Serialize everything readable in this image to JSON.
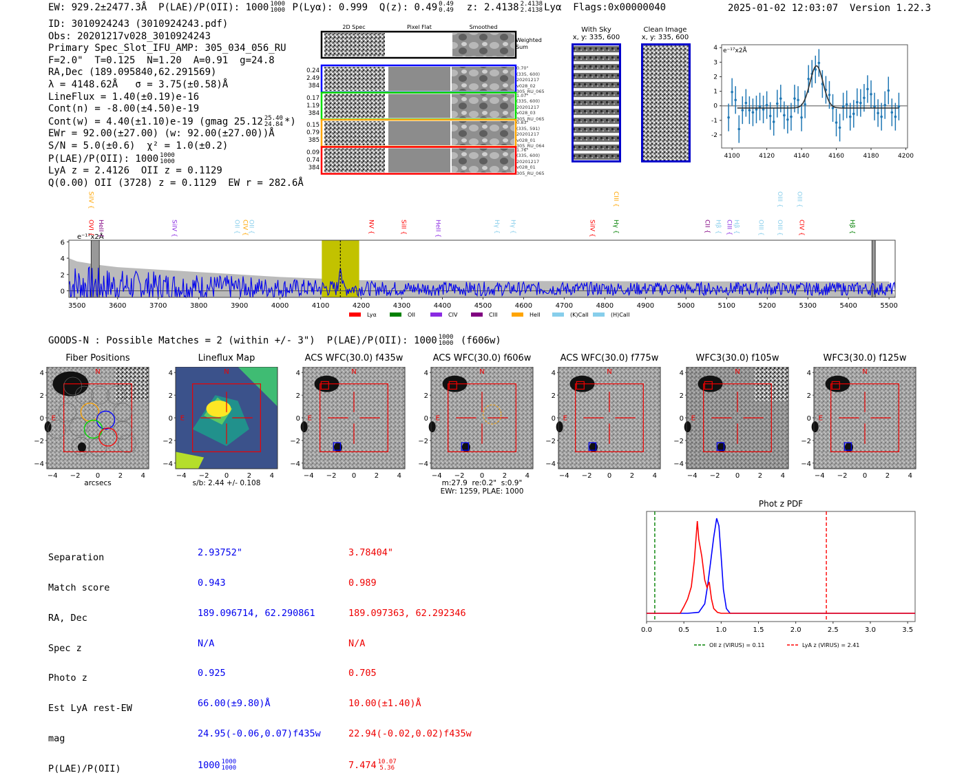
{
  "header": {
    "ew": "EW: 929.2±2477.3Å",
    "plae_label": "P(LAE)/P(OII): 1000",
    "plae_hi": "1000",
    "plae_lo": "1000",
    "plya": "P(Lyα): 0.999",
    "qz_label": "Q(z): 0.49",
    "qz_hi": "0.49",
    "qz_lo": "0.49",
    "z_label": "z: 2.4138",
    "z_hi": "2.4138",
    "z_lo": "2.4138",
    "line": "Lyα",
    "flags": "Flags:0x00000040",
    "timestamp": "2025-01-02 12:03:07",
    "version": "Version 1.22.3"
  },
  "info": {
    "id": "ID: 3010924243 (3010924243.pdf)",
    "obs": "Obs: 20201217v028_3010924243",
    "primary": "Primary Spec_Slot_IFU_AMP: 305_034_056_RU",
    "params": "F=2.0\"  T=0.125  N=1.20  A=0.91  g=24.8",
    "radec": "RA,Dec (189.095840,62.291569)",
    "lambda": "λ = 4148.62Å   σ = 3.75(±0.58)Å",
    "lineflux": "LineFlux = 1.40(±0.19)e-16",
    "cont_n": "Cont(n) = -8.00(±4.50)e-19",
    "cont_w": "Cont(w) = 4.40(±1.10)e-19 (gmag 25.12",
    "gmag_hi": "25.40",
    "gmag_lo": "24.84",
    "cont_w_end": "*)",
    "ewr": "EWr = 92.00(±27.00) (w: 92.00(±27.00))Å",
    "sn": "S/N = 5.0(±0.6)  χ² = 1.0(±0.2)",
    "plae": "P(LAE)/P(OII): 1000",
    "plae_hi": "1000",
    "plae_lo": "1000",
    "lya_z": "LyA z = 2.4126  OII z = 0.1129",
    "q_oii": "Q(0.00) OII (3728) z = 0.1129  EW r = 282.6Å"
  },
  "cutouts": {
    "columns": [
      "2D Spec",
      "Pixel Flat",
      "Smoothed"
    ],
    "weighted_sum_label": "Weighted\nSum",
    "rows": [
      {
        "color": "#0000ff",
        "left": [
          "0.24",
          "2.49",
          "384"
        ],
        "right": "0.70\"\n(335, 600)\n20201217\nv028_02\n305_RU_065"
      },
      {
        "color": "#00dd00",
        "left": [
          "0.17",
          "1.19",
          "384"
        ],
        "right": "1.07\"\n(335, 600)\n20201217\nv028_03\n305_RU_065"
      },
      {
        "color": "#ffa500",
        "left": [
          "0.15",
          "0.79",
          "385"
        ],
        "right": "0.83\"\n(335, 591)\n20201217\nv028_01\n305_RU_064"
      },
      {
        "color": "#ff0000",
        "left": [
          "0.09",
          "0.74",
          "384"
        ],
        "right": "1.76\"\n(335, 600)\n20201217\nv028_01\n305_RU_065"
      }
    ]
  },
  "sky_panels": {
    "with_sky_title": "With Sky",
    "with_sky_xy": "x, y: 335, 600",
    "clean_title": "Clean Image",
    "clean_xy": "x, y: 335, 600"
  },
  "chart_data": [
    {
      "type": "scatter",
      "name": "line-fit-zoom",
      "ylabel_annotation": "e⁻¹⁷x2Å",
      "xlim": [
        4094,
        4201
      ],
      "ylim": [
        -2.9,
        4.2
      ],
      "xticks": [
        4100,
        4120,
        4140,
        4160,
        4180,
        4200
      ],
      "yticks": [
        -2,
        -1,
        0,
        1,
        2,
        3,
        4
      ],
      "points_x": [
        4098,
        4100,
        4102,
        4104,
        4106,
        4108,
        4110,
        4112,
        4114,
        4116,
        4118,
        4120,
        4122,
        4124,
        4126,
        4128,
        4130,
        4132,
        4134,
        4136,
        4138,
        4140,
        4142,
        4144,
        4146,
        4148,
        4150,
        4152,
        4154,
        4156,
        4158,
        4160,
        4162,
        4164,
        4166,
        4168,
        4170,
        4172,
        4174,
        4176,
        4178,
        4180,
        4182,
        4184,
        4186,
        4188,
        4190,
        4192,
        4194,
        4196
      ],
      "points_y": [
        -0.8,
        0.95,
        0.4,
        -1.6,
        -0.3,
        0.2,
        -0.3,
        -0.45,
        -0.25,
        -0.05,
        -0.25,
        0.05,
        -0.7,
        -1.1,
        0.15,
        0.5,
        -0.65,
        -0.95,
        -0.75,
        0.5,
        0.4,
        -0.8,
        0.1,
        1.85,
        2.2,
        2.5,
        2.95,
        1.5,
        1.1,
        0.75,
        -0.15,
        -1.15,
        -1.5,
        -0.05,
        0.1,
        -0.75,
        -0.55,
        0.25,
        0.2,
        0.55,
        1.15,
        0.8,
        -0.05,
        -0.5,
        -0.75,
        0.05,
        1.05,
        -0.45,
        -0.75,
        -0.05
      ],
      "error": 0.95,
      "fit": {
        "center": 4148.6,
        "sigma": 3.75,
        "amplitude": 2.9,
        "baseline": -0.15,
        "x_range": [
          4103,
          4196
        ]
      },
      "colors": {
        "points": "#1f77b4",
        "fit": "#333333",
        "zero": "#888888"
      }
    },
    {
      "type": "line",
      "name": "full-spectrum",
      "ylabel_annotation": "e⁻¹⁷x2Å",
      "xlim": [
        3480,
        5515
      ],
      "ylim": [
        -0.8,
        6.2
      ],
      "xticks": [
        3500,
        3600,
        3700,
        3800,
        3900,
        4000,
        4100,
        4200,
        4300,
        4400,
        4500,
        4600,
        4700,
        4800,
        4900,
        5000,
        5100,
        5200,
        5300,
        5400,
        5500
      ],
      "yticks": [
        0,
        2,
        4,
        6
      ],
      "highlight_band": [
        4103,
        4195
      ],
      "highlight_color": "#c2c200",
      "line_marker": 4148.6,
      "masked_bands": [
        [
          3535,
          3555
        ],
        [
          5458,
          5466
        ]
      ],
      "noise_envelope": [
        [
          3480,
          4.0
        ],
        [
          3500,
          3.6
        ],
        [
          3550,
          3.2
        ],
        [
          3600,
          2.9
        ],
        [
          3700,
          2.6
        ],
        [
          3800,
          2.3
        ],
        [
          3900,
          2.0
        ],
        [
          4000,
          1.7
        ],
        [
          4100,
          1.5
        ],
        [
          4200,
          1.3
        ],
        [
          4400,
          1.25
        ],
        [
          4600,
          1.2
        ],
        [
          5000,
          1.15
        ],
        [
          5500,
          1.15
        ]
      ],
      "series_color": "#0000ee",
      "envelope_color": "#bbbbbb",
      "line_labels": [
        {
          "text": "SiIV",
          "x": 3535,
          "tier": 0,
          "color": "#ffa500"
        },
        {
          "text": "OVI",
          "x": 3535,
          "tier": 1,
          "color": "#ff0000"
        },
        {
          "text": "HeII",
          "x": 3560,
          "tier": 1,
          "color": "#800080"
        },
        {
          "text": "SiIV",
          "x": 3740,
          "tier": 1,
          "color": "#8a2be2"
        },
        {
          "text": "OII",
          "x": 3895,
          "tier": 1,
          "color": "#87ceeb"
        },
        {
          "text": "CIV",
          "x": 3915,
          "tier": 1,
          "color": "#ffa500"
        },
        {
          "text": "OII",
          "x": 3930,
          "tier": 1,
          "color": "#87ceeb"
        },
        {
          "text": "NV",
          "x": 4225,
          "tier": 1,
          "color": "#ff0000"
        },
        {
          "text": "SiII",
          "x": 4305,
          "tier": 1,
          "color": "#ff0000"
        },
        {
          "text": "HeII",
          "x": 4390,
          "tier": 1,
          "color": "#8a2be2"
        },
        {
          "text": "Hγ",
          "x": 4535,
          "tier": 1,
          "color": "#87ceeb"
        },
        {
          "text": "Hγ",
          "x": 4575,
          "tier": 1,
          "color": "#87ceeb"
        },
        {
          "text": "SiIV",
          "x": 4770,
          "tier": 1,
          "color": "#ff0000"
        },
        {
          "text": "CIII",
          "x": 4828,
          "tier": 0,
          "color": "#ffa500"
        },
        {
          "text": "Hγ",
          "x": 4828,
          "tier": 1,
          "color": "#008000"
        },
        {
          "text": "CII",
          "x": 5053,
          "tier": 1,
          "color": "#800080"
        },
        {
          "text": "Hβ",
          "x": 5080,
          "tier": 1,
          "color": "#87ceeb"
        },
        {
          "text": "CIII",
          "x": 5107,
          "tier": 1,
          "color": "#8a2be2"
        },
        {
          "text": "Hβ",
          "x": 5125,
          "tier": 1,
          "color": "#87ceeb"
        },
        {
          "text": "OIII",
          "x": 5185,
          "tier": 1,
          "color": "#87ceeb"
        },
        {
          "text": "OIII",
          "x": 5232,
          "tier": 0,
          "color": "#87ceeb"
        },
        {
          "text": "OIII",
          "x": 5232,
          "tier": 1,
          "color": "#87ceeb"
        },
        {
          "text": "OIII",
          "x": 5280,
          "tier": 0,
          "color": "#87ceeb"
        },
        {
          "text": "CIV",
          "x": 5285,
          "tier": 1,
          "color": "#ff0000"
        },
        {
          "text": "Hβ",
          "x": 5410,
          "tier": 1,
          "color": "#008000"
        }
      ],
      "legend": [
        {
          "label": "Lyα",
          "color": "#ff0000"
        },
        {
          "label": "OII",
          "color": "#008000"
        },
        {
          "label": "CIV",
          "color": "#8a2be2"
        },
        {
          "label": "CIII",
          "color": "#800080"
        },
        {
          "label": "HeII",
          "color": "#ffa500"
        },
        {
          "label": "(K)CaII",
          "color": "#87ceeb"
        },
        {
          "label": "(H)CaII",
          "color": "#87ceeb"
        }
      ],
      "legend_placement": "bottom-center"
    },
    {
      "type": "line",
      "name": "phot-z-pdf",
      "title": "Phot z PDF",
      "xlim": [
        0.0,
        3.6
      ],
      "xticks": [
        0.0,
        0.5,
        1.0,
        1.5,
        2.0,
        2.5,
        3.0,
        3.5
      ],
      "series": [
        {
          "name": "blue-match",
          "color": "#0000ff",
          "x": [
            0.0,
            0.55,
            0.7,
            0.78,
            0.82,
            0.86,
            0.9,
            0.94,
            0.97,
            1.0,
            1.03,
            1.07,
            1.12,
            3.6
          ],
          "y": [
            0.0,
            0.0,
            0.01,
            0.1,
            0.3,
            0.55,
            0.8,
            1.0,
            0.92,
            0.6,
            0.25,
            0.05,
            0.0,
            0.0
          ]
        },
        {
          "name": "red-match",
          "color": "#ff0000",
          "x": [
            0.0,
            0.45,
            0.5,
            0.55,
            0.6,
            0.64,
            0.68,
            0.7,
            0.74,
            0.78,
            0.81,
            0.84,
            0.87,
            0.9,
            0.95,
            1.0,
            3.6
          ],
          "y": [
            0.0,
            0.0,
            0.07,
            0.15,
            0.28,
            0.55,
            0.97,
            0.78,
            0.6,
            0.35,
            0.27,
            0.33,
            0.15,
            0.05,
            0.01,
            0.0,
            0.0
          ]
        }
      ],
      "vlines": [
        {
          "x": 0.11,
          "color": "#008000",
          "label": "OII z (VIRUS) = 0.11"
        },
        {
          "x": 2.41,
          "color": "#ff0000",
          "label": "LyA z (VIRUS) = 2.41"
        }
      ],
      "legend_placement": "bottom"
    }
  ],
  "goods": {
    "line": "GOODS-N : Possible Matches = 2 (within +/- 3\")  P(LAE)/P(OII): 1000",
    "plae_hi": "1000",
    "plae_lo": "1000",
    "filter": "(f606w)"
  },
  "imaging_panels": [
    {
      "title": "Fiber Positions",
      "xlabel": "arcsecs"
    },
    {
      "title": "Lineflux Map",
      "xlabel": "s/b: 2.44 +/- 0.108"
    },
    {
      "title": "ACS WFC(30.0) f435w",
      "xlabel": ""
    },
    {
      "title": "ACS WFC(30.0) f606w",
      "xlabel": "m:27.9  re:0.2\"  s:0.9\"\nEWr: 1259, PLAE: 1000"
    },
    {
      "title": "ACS WFC(30.0) f775w",
      "xlabel": ""
    },
    {
      "title": "WFC3(30.0) f105w",
      "xlabel": ""
    },
    {
      "title": "WFC3(30.0) f125w",
      "xlabel": ""
    }
  ],
  "imaging_axes": {
    "ticks": [
      "4",
      "2",
      "0",
      "−2",
      "−4"
    ],
    "xticks": [
      "−4",
      "−2",
      "0",
      "2",
      "4"
    ],
    "north": "N",
    "east": "E"
  },
  "matches": {
    "labels": [
      "Separation",
      "Match score",
      "RA, Dec",
      "Spec z",
      "Photo z",
      "Est LyA rest-EW",
      "mag",
      "P(LAE)/P(OII)"
    ],
    "blue": {
      "color": "#0000ee",
      "values": [
        "2.93752\"",
        "0.943",
        "189.096714, 62.290861",
        "N/A",
        "0.925",
        "66.00(±9.80)Å",
        "24.95(-0.06,0.07)f435w"
      ],
      "plae": "1000",
      "plae_hi": "1000",
      "plae_lo": "1000"
    },
    "red": {
      "color": "#ee0000",
      "values": [
        "3.78404\"",
        "0.989",
        "189.097363, 62.292346",
        "N/A",
        "0.705",
        "10.00(±1.40)Å",
        "22.94(-0.02,0.02)f435w"
      ],
      "plae": "7.474",
      "plae_hi": "10.07",
      "plae_lo": "5.36"
    }
  }
}
